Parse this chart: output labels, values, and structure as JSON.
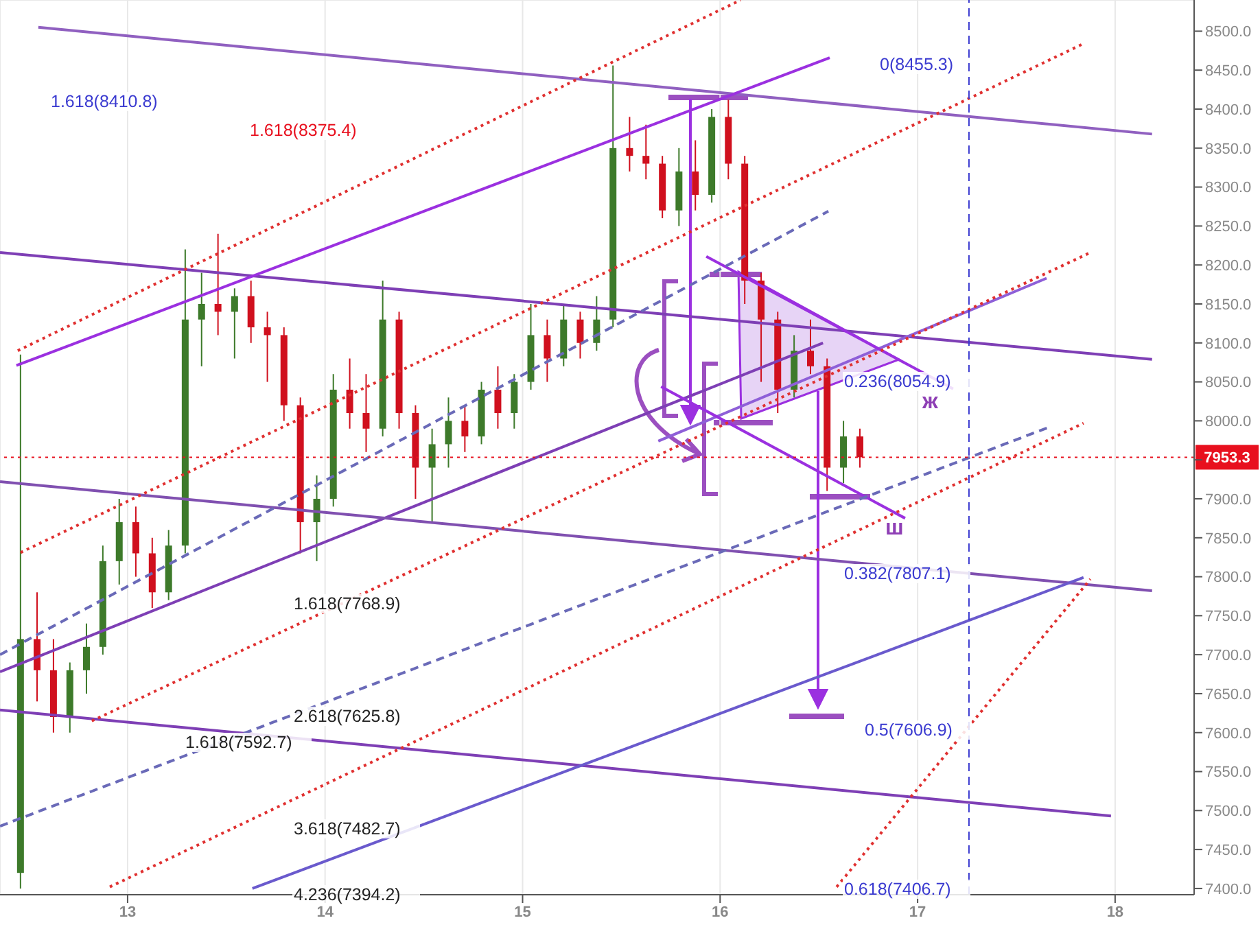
{
  "chart_data": {
    "type": "candlestick",
    "x": [
      12.458,
      12.542,
      12.625,
      12.708,
      12.792,
      12.875,
      12.958,
      13.042,
      13.125,
      13.208,
      13.292,
      13.375,
      13.458,
      13.542,
      13.625,
      13.708,
      13.792,
      13.875,
      13.958,
      14.042,
      14.125,
      14.208,
      14.292,
      14.375,
      14.458,
      14.542,
      14.625,
      14.708,
      14.792,
      14.875,
      14.958,
      15.042,
      15.125,
      15.208,
      15.292,
      15.375,
      15.458,
      15.542,
      15.625,
      15.708,
      15.792,
      15.875,
      15.958,
      16.042,
      16.125,
      16.208,
      16.292,
      16.375,
      16.458,
      16.542,
      16.625,
      16.708
    ],
    "ohlc": [
      [
        7420,
        8085,
        7400,
        7720
      ],
      [
        7720,
        7780,
        7640,
        7680
      ],
      [
        7680,
        7720,
        7600,
        7620
      ],
      [
        7620,
        7690,
        7600,
        7680
      ],
      [
        7680,
        7740,
        7650,
        7710
      ],
      [
        7710,
        7840,
        7700,
        7820
      ],
      [
        7820,
        7900,
        7790,
        7870
      ],
      [
        7870,
        7890,
        7800,
        7830
      ],
      [
        7830,
        7850,
        7760,
        7780
      ],
      [
        7780,
        7860,
        7770,
        7840
      ],
      [
        7840,
        8220,
        7830,
        8130
      ],
      [
        8130,
        8190,
        8070,
        8150
      ],
      [
        8150,
        8240,
        8110,
        8140
      ],
      [
        8140,
        8170,
        8080,
        8160
      ],
      [
        8160,
        8180,
        8100,
        8120
      ],
      [
        8120,
        8140,
        8050,
        8110
      ],
      [
        8110,
        8120,
        8000,
        8020
      ],
      [
        8020,
        8030,
        7830,
        7870
      ],
      [
        7870,
        7930,
        7820,
        7900
      ],
      [
        7900,
        8060,
        7890,
        8040
      ],
      [
        8040,
        8080,
        7990,
        8010
      ],
      [
        8010,
        8060,
        7960,
        7990
      ],
      [
        7990,
        8180,
        7980,
        8130
      ],
      [
        8130,
        8140,
        7990,
        8010
      ],
      [
        8010,
        8020,
        7900,
        7940
      ],
      [
        7940,
        7990,
        7870,
        7970
      ],
      [
        7970,
        8030,
        7940,
        8000
      ],
      [
        8000,
        8020,
        7960,
        7980
      ],
      [
        7980,
        8050,
        7970,
        8040
      ],
      [
        8040,
        8070,
        7990,
        8010
      ],
      [
        8010,
        8060,
        7990,
        8050
      ],
      [
        8050,
        8150,
        8040,
        8110
      ],
      [
        8110,
        8130,
        8050,
        8080
      ],
      [
        8080,
        8150,
        8070,
        8130
      ],
      [
        8130,
        8140,
        8080,
        8100
      ],
      [
        8100,
        8160,
        8090,
        8130
      ],
      [
        8130,
        8456,
        8120,
        8350
      ],
      [
        8350,
        8390,
        8320,
        8340
      ],
      [
        8340,
        8380,
        8310,
        8330
      ],
      [
        8330,
        8340,
        8260,
        8270
      ],
      [
        8270,
        8350,
        8250,
        8320
      ],
      [
        8320,
        8360,
        8270,
        8290
      ],
      [
        8290,
        8400,
        8280,
        8390
      ],
      [
        8390,
        8412,
        8310,
        8330
      ],
      [
        8330,
        8340,
        8150,
        8180
      ],
      [
        8180,
        8190,
        8050,
        8130
      ],
      [
        8130,
        8140,
        8010,
        8040
      ],
      [
        8040,
        8110,
        8030,
        8090
      ],
      [
        8090,
        8130,
        8060,
        8070
      ],
      [
        8070,
        8080,
        7910,
        7940
      ],
      [
        7940,
        8000,
        7920,
        7980
      ],
      [
        7980,
        7990,
        7940,
        7953.3
      ]
    ],
    "colors": [
      "#3d7a2a",
      "#d0101e",
      "#d0101e",
      "#3d7a2a",
      "#3d7a2a",
      "#3d7a2a",
      "#3d7a2a",
      "#d0101e",
      "#d0101e",
      "#3d7a2a",
      "#3d7a2a",
      "#3d7a2a",
      "#d0101e",
      "#3d7a2a",
      "#d0101e",
      "#d0101e",
      "#d0101e",
      "#d0101e",
      "#3d7a2a",
      "#3d7a2a",
      "#d0101e",
      "#d0101e",
      "#3d7a2a",
      "#d0101e",
      "#d0101e",
      "#3d7a2a",
      "#3d7a2a",
      "#d0101e",
      "#3d7a2a",
      "#d0101e",
      "#3d7a2a",
      "#3d7a2a",
      "#d0101e",
      "#3d7a2a",
      "#d0101e",
      "#3d7a2a",
      "#3d7a2a",
      "#d0101e",
      "#d0101e",
      "#d0101e",
      "#3d7a2a",
      "#d0101e",
      "#3d7a2a",
      "#d0101e",
      "#d0101e",
      "#d0101e",
      "#d0101e",
      "#3d7a2a",
      "#d0101e",
      "#d0101e",
      "#3d7a2a",
      "#d0101e"
    ],
    "series": [
      {
        "type": "line",
        "color": "#7e3fb5",
        "x": [
          12.354,
          18.187
        ],
        "values": [
          8216,
          8079
        ]
      },
      {
        "type": "line",
        "color": "#7e3fb5",
        "x": [
          12.354,
          16.521
        ],
        "values": [
          7678,
          8100
        ]
      },
      {
        "type": "line",
        "color": "#8e5fd8",
        "x": [
          15.687,
          17.653
        ],
        "values": [
          7974,
          8183
        ]
      },
      {
        "type": "line",
        "color": "#9060c0",
        "x": [
          12.548,
          18.187
        ],
        "values": [
          8505,
          8368
        ]
      },
      {
        "type": "line",
        "color": "#9b30e0",
        "x": [
          12.437,
          16.555
        ],
        "values": [
          8071,
          8466
        ]
      },
      {
        "type": "line",
        "color": "#8050b0",
        "x": [
          12.354,
          18.187
        ],
        "values": [
          7922,
          7782
        ]
      },
      {
        "type": "line",
        "color": "#7e3fb5",
        "x": [
          12.354,
          17.979
        ],
        "values": [
          7629,
          7493
        ]
      },
      {
        "type": "line",
        "color": "#6a5acd",
        "x": [
          13.632,
          17.84
        ],
        "values": [
          7400,
          7799
        ]
      },
      {
        "type": "line",
        "color": "#9b30e0",
        "x": [
          15.93,
          17.18
        ],
        "values": [
          8211,
          8041
        ]
      },
      {
        "type": "line",
        "color": "#9b30e0",
        "x": [
          15.701,
          16.937
        ],
        "values": [
          8044,
          7875
        ]
      },
      {
        "type": "line",
        "color": "#e03030",
        "line_style": "dotted",
        "x": [
          12.444,
          16.104
        ],
        "values": [
          8090,
          8540
        ]
      },
      {
        "type": "line",
        "color": "#e03030",
        "line_style": "dotted",
        "x": [
          12.458,
          17.84
        ],
        "values": [
          7831,
          8484
        ]
      },
      {
        "type": "line",
        "color": "#e03030",
        "line_style": "dotted",
        "x": [
          12.819,
          17.875
        ],
        "values": [
          7615,
          8216
        ]
      },
      {
        "type": "line",
        "color": "#e03030",
        "line_style": "dotted",
        "x": [
          12.91,
          17.84
        ],
        "values": [
          7402,
          7997
        ]
      },
      {
        "type": "line",
        "color": "#e03030",
        "line_style": "dotted",
        "x": [
          16.59,
          17.875
        ],
        "values": [
          7402,
          7797
        ]
      },
      {
        "type": "line",
        "color": "#6a6ab8",
        "line_style": "dashed",
        "x": [
          12.354,
          16.548
        ],
        "values": [
          7700,
          8269
        ]
      },
      {
        "type": "line",
        "color": "#6a6ab8",
        "line_style": "dashed",
        "x": [
          12.354,
          17.667
        ],
        "values": [
          7480,
          7992
        ]
      }
    ],
    "xlim": [
      12.354,
      18.4
    ],
    "xticks": [
      13,
      14,
      15,
      16,
      17,
      18
    ],
    "ylim": [
      7392,
      8540
    ],
    "yticks": [
      {
        "value": 7400,
        "label": "7400.0"
      },
      {
        "value": 7450,
        "label": "7450.0"
      },
      {
        "value": 7500,
        "label": "7500.0"
      },
      {
        "value": 7550,
        "label": "7550.0"
      },
      {
        "value": 7600,
        "label": "7600.0"
      },
      {
        "value": 7650,
        "label": "7650.0"
      },
      {
        "value": 7700,
        "label": "7700.0"
      },
      {
        "value": 7750,
        "label": "7750.0"
      },
      {
        "value": 7800,
        "label": "7800.0"
      },
      {
        "value": 7850,
        "label": "7850.0"
      },
      {
        "value": 7900,
        "label": "7900.0"
      },
      {
        "value": 7950,
        "label": null
      },
      {
        "value": 8000,
        "label": "8000.0"
      },
      {
        "value": 8050,
        "label": "8050.0"
      },
      {
        "value": 8100,
        "label": "8100.0"
      },
      {
        "value": 8150,
        "label": "8150.0"
      },
      {
        "value": 8200,
        "label": "8200.0"
      },
      {
        "value": 8250,
        "label": "8250.0"
      },
      {
        "value": 8300,
        "label": "8300.0"
      },
      {
        "value": 8350,
        "label": "8350.0"
      },
      {
        "value": 8400,
        "label": "8400.0"
      },
      {
        "value": 8450,
        "label": "8450.0"
      },
      {
        "value": 8500,
        "label": "8500.0"
      }
    ],
    "grid": true,
    "ref_lines": [
      {
        "axis": "y",
        "value": 7953.3,
        "label": "7953.3",
        "color": "#e8101e",
        "line_style": "dotted"
      },
      {
        "axis": "x",
        "value": 17.26,
        "label": null,
        "color": "#3a3ad0",
        "line_style": "dashed"
      }
    ],
    "annotations": [
      "1.618(8410.8)",
      "1.618(8375.4)",
      "0(8455.3)",
      "0.236(8054.9)",
      "0.382(7807.1)",
      "0.5(7606.9)",
      "0.618(7406.7)",
      "1.618(7768.9)",
      "2.618(7625.8)",
      "1.618(7592.7)",
      "3.618(7482.7)",
      "4.236(7394.2)",
      "ж",
      "ш"
    ]
  }
}
